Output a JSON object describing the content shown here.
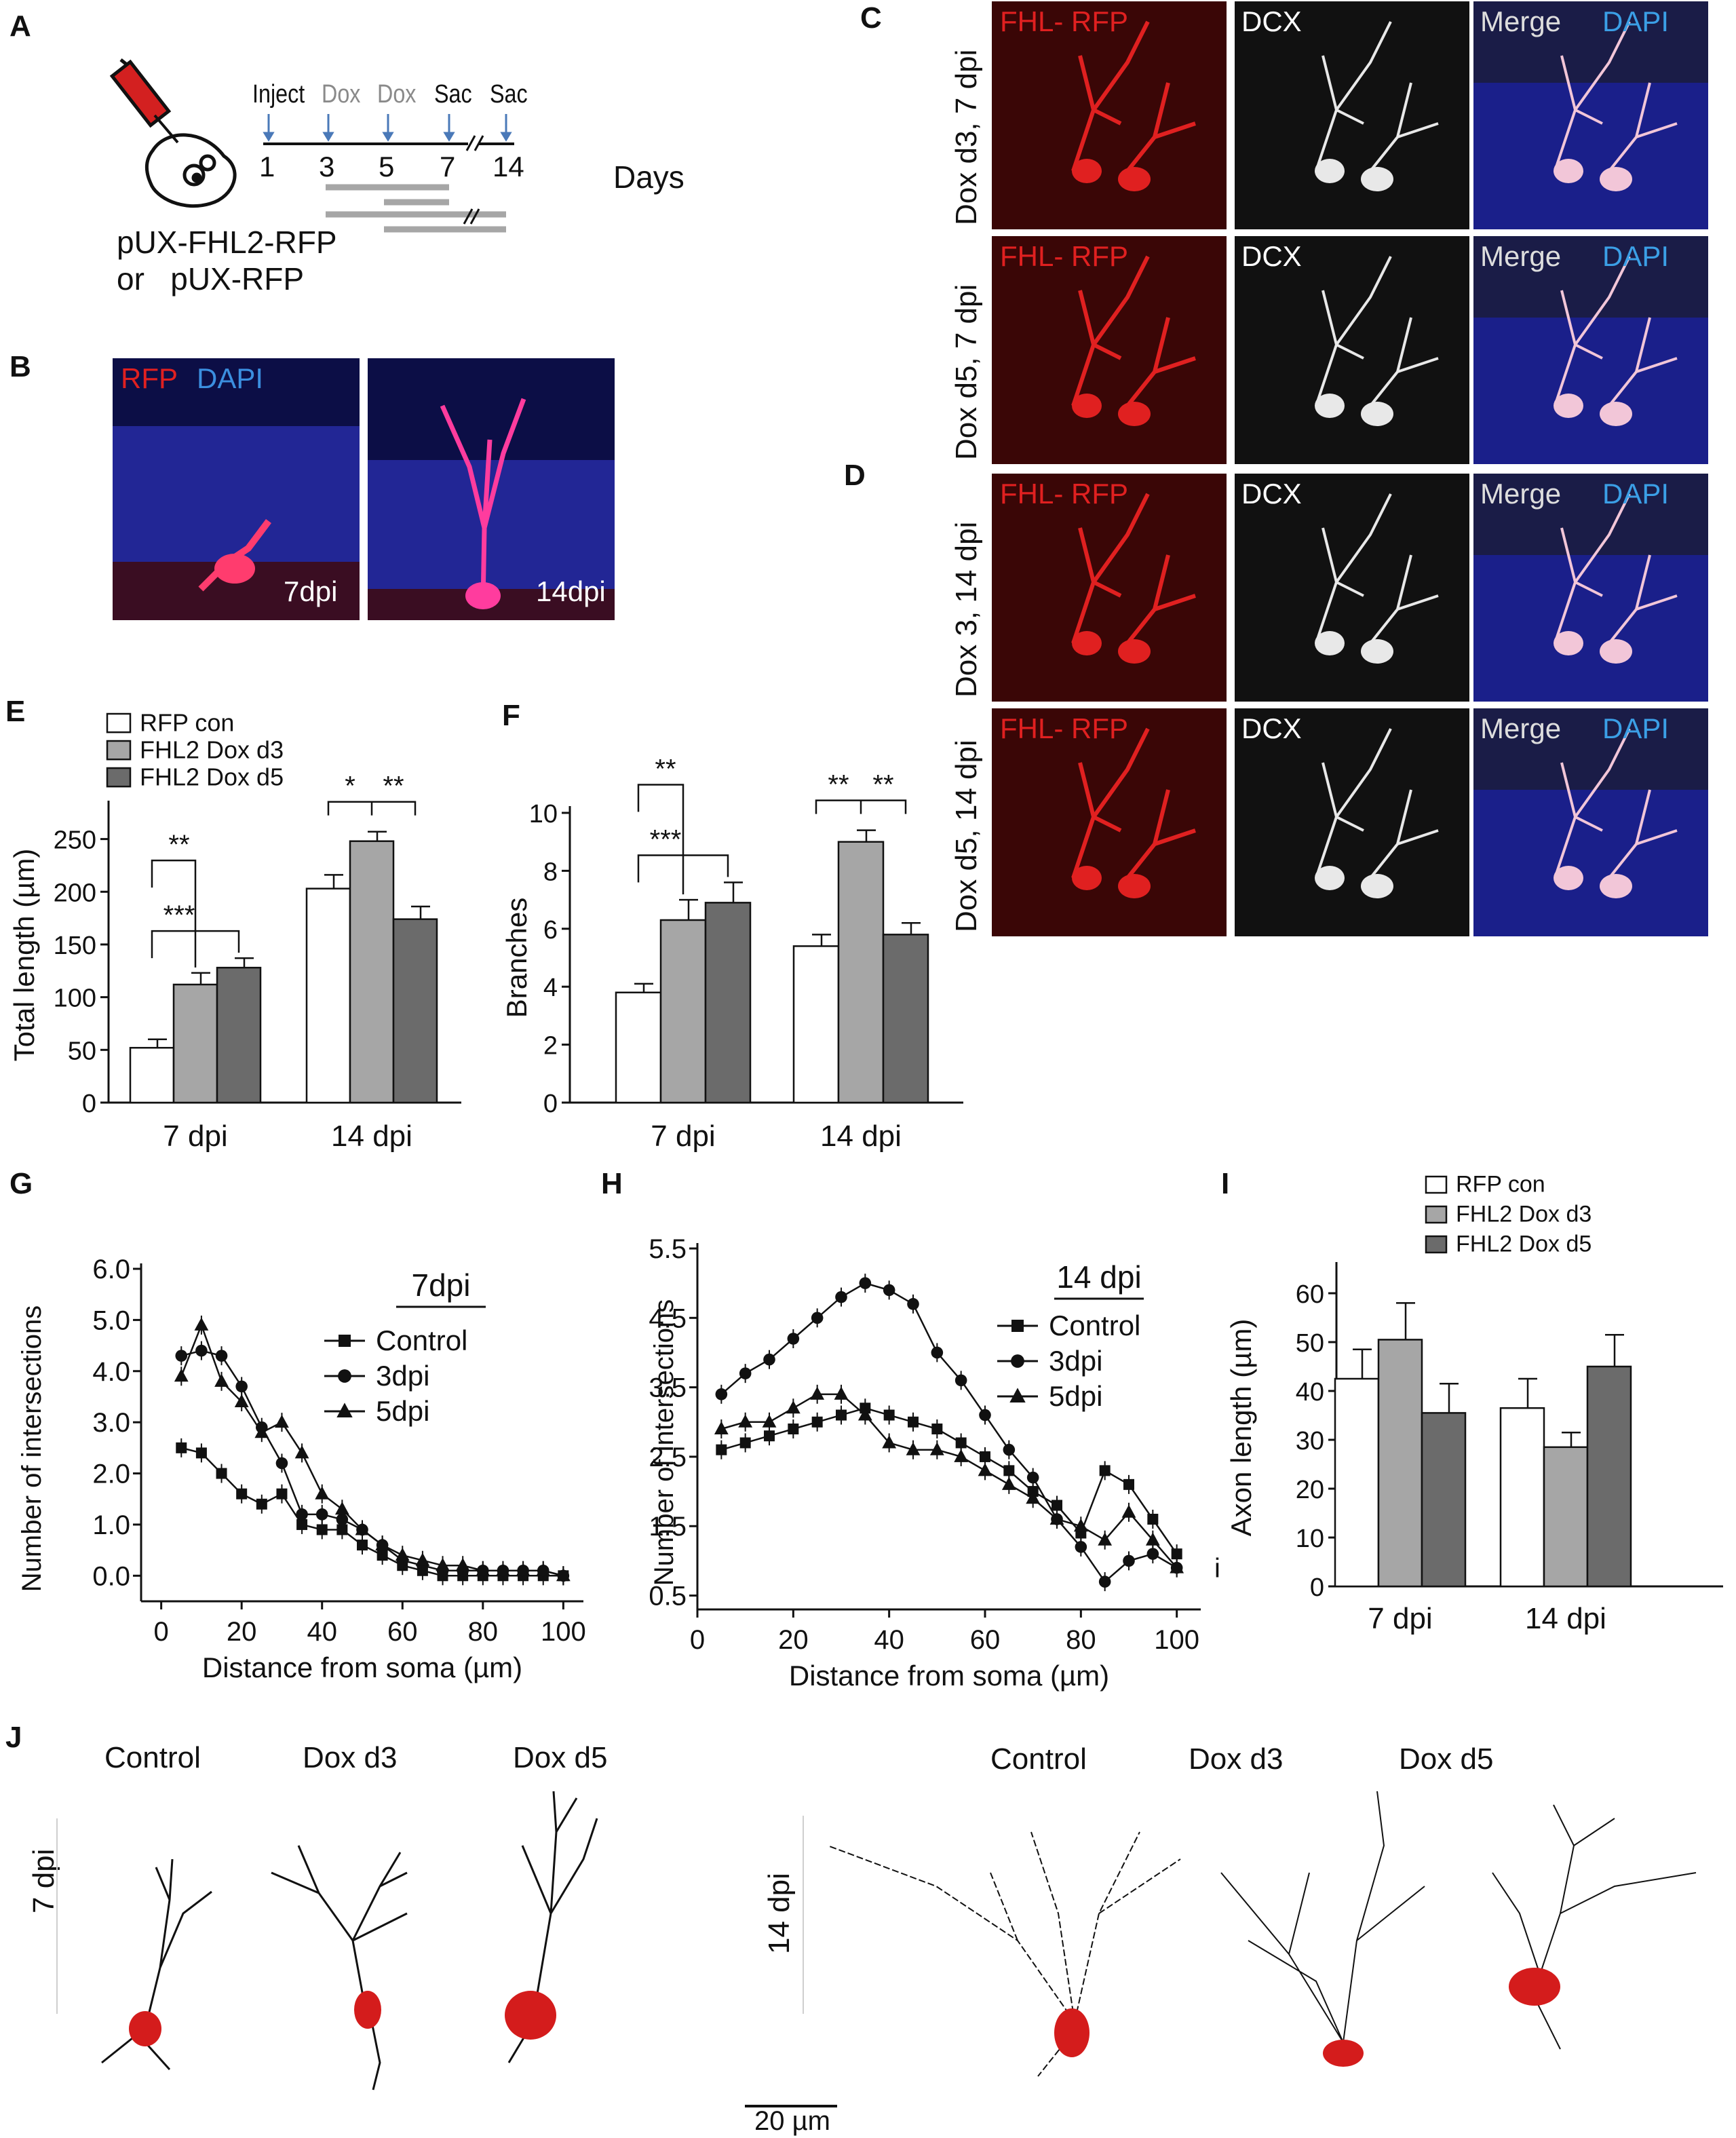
{
  "panels": {
    "A": "A",
    "B": "B",
    "C": "C",
    "D": "D",
    "E": "E",
    "F": "F",
    "G": "G",
    "H": "H",
    "I": "I",
    "J": "J"
  },
  "timeline": {
    "events": [
      "Inject",
      "Dox",
      "Dox",
      "Sac",
      "Sac"
    ],
    "days": [
      "1",
      "3",
      "5",
      "7",
      "14"
    ],
    "days_label": "Days",
    "constructs": [
      "pUX-FHL2-RFP",
      "or   pUX-RFP"
    ]
  },
  "panel_b": {
    "label_rfp": "RFP",
    "label_dapi": "DAPI",
    "timepoints": [
      "7dpi",
      "14dpi"
    ]
  },
  "panel_cd": {
    "column_labels": {
      "fhl_rfp": "FHL- RFP",
      "dcx": "DCX",
      "merge": "Merge",
      "dapi": "DAPI"
    },
    "row_labels": [
      "Dox d3, 7 dpi",
      "Dox d5, 7 dpi",
      "Dox 3, 14 dpi",
      "Dox d5, 14 dpi"
    ]
  },
  "colors": {
    "rfp_con": "#ffffff",
    "dox_d3": "#a6a6a6",
    "dox_d5": "#6b6b6b",
    "rfp_red": "#e02020",
    "dapi_blue": "#2b2bd4"
  },
  "chart_data": [
    {
      "id": "E",
      "type": "bar",
      "categories": [
        "7 dpi",
        "14 dpi"
      ],
      "series": [
        {
          "name": "RFP con",
          "values": [
            52,
            203
          ],
          "errors": [
            8,
            13
          ]
        },
        {
          "name": "FHL2 Dox d3",
          "values": [
            112,
            248
          ],
          "errors": [
            11,
            9
          ]
        },
        {
          "name": "FHL2 Dox d5",
          "values": [
            128,
            174
          ],
          "errors": [
            9,
            12
          ]
        }
      ],
      "ylabel": "Total length (µm)",
      "ylim": [
        0,
        280
      ],
      "yticks": [
        0,
        50,
        100,
        150,
        200,
        250
      ],
      "significance": [
        {
          "group": "7 dpi",
          "pair": [
            "RFP con",
            "FHL2 Dox d3"
          ],
          "mark": "**"
        },
        {
          "group": "7 dpi",
          "pair": [
            "RFP con",
            "FHL2 Dox d5"
          ],
          "mark": "***"
        },
        {
          "group": "14 dpi",
          "pair": [
            "RFP con",
            "FHL2 Dox d3"
          ],
          "mark": "*"
        },
        {
          "group": "14 dpi",
          "pair": [
            "FHL2 Dox d3",
            "FHL2 Dox d5"
          ],
          "mark": "**"
        }
      ],
      "legend": "top-left"
    },
    {
      "id": "F",
      "type": "bar",
      "categories": [
        "7 dpi",
        "14 dpi"
      ],
      "series": [
        {
          "name": "RFP con",
          "values": [
            3.8,
            5.4
          ],
          "errors": [
            0.3,
            0.4
          ]
        },
        {
          "name": "FHL2 Dox d3",
          "values": [
            6.3,
            9.0
          ],
          "errors": [
            0.7,
            0.4
          ]
        },
        {
          "name": "FHL2 Dox d5",
          "values": [
            6.9,
            5.8
          ],
          "errors": [
            0.7,
            0.4
          ]
        }
      ],
      "ylabel": "Branches",
      "ylim": [
        0,
        10
      ],
      "yticks": [
        0,
        2,
        4,
        6,
        8,
        10
      ],
      "significance": [
        {
          "group": "7 dpi",
          "pair": [
            "RFP con",
            "FHL2 Dox d3"
          ],
          "mark": "**"
        },
        {
          "group": "7 dpi",
          "pair": [
            "RFP con",
            "FHL2 Dox d5"
          ],
          "mark": "***"
        },
        {
          "group": "14 dpi",
          "pair": [
            "RFP con",
            "FHL2 Dox d3"
          ],
          "mark": "**"
        },
        {
          "group": "14 dpi",
          "pair": [
            "FHL2 Dox d3",
            "FHL2 Dox d5"
          ],
          "mark": "**"
        }
      ]
    },
    {
      "id": "G",
      "type": "line",
      "title": "7dpi",
      "xlabel": "Distance from soma (µm)",
      "ylabel": "Number of intersections",
      "xlim": [
        -5,
        105
      ],
      "ylim": [
        -0.5,
        6.0
      ],
      "xticks": [
        0,
        20,
        40,
        60,
        80,
        100
      ],
      "yticks": [
        0.0,
        1.0,
        2.0,
        3.0,
        4.0,
        5.0,
        6.0
      ],
      "ytick_labels": [
        "0.0",
        "1.0",
        "2.0",
        "3.0",
        "4.0",
        "5.0",
        "6.0"
      ],
      "x": [
        5,
        10,
        15,
        20,
        25,
        30,
        35,
        40,
        45,
        50,
        55,
        60,
        65,
        70,
        75,
        80,
        85,
        90,
        95,
        100
      ],
      "series": [
        {
          "name": "Control",
          "marker": "square",
          "values": [
            2.5,
            2.4,
            2.0,
            1.6,
            1.4,
            1.6,
            1.0,
            0.9,
            0.9,
            0.6,
            0.4,
            0.2,
            0.1,
            0.0,
            0.0,
            0.0,
            0.0,
            0.0,
            0.0,
            0.0
          ]
        },
        {
          "name": "3dpi",
          "marker": "circle",
          "values": [
            4.3,
            4.4,
            4.3,
            3.7,
            2.9,
            2.2,
            1.2,
            1.2,
            1.1,
            0.9,
            0.6,
            0.3,
            0.2,
            0.1,
            0.1,
            0.1,
            0.1,
            0.1,
            0.1,
            0.0
          ]
        },
        {
          "name": "5dpi",
          "marker": "triangle",
          "values": [
            3.9,
            4.9,
            3.8,
            3.4,
            2.8,
            3.0,
            2.4,
            1.6,
            1.3,
            0.9,
            0.6,
            0.4,
            0.3,
            0.2,
            0.2,
            0.1,
            0.1,
            0.1,
            0.1,
            0.0
          ]
        }
      ],
      "legend": "top-right"
    },
    {
      "id": "H",
      "type": "line",
      "title": "14 dpi",
      "xlabel": "Distance from soma (µm)",
      "ylabel": "Number of intersections",
      "xlim": [
        0,
        105
      ],
      "ylim": [
        0.3,
        5.5
      ],
      "xticks": [
        0,
        20,
        40,
        60,
        80,
        100
      ],
      "yticks": [
        0.5,
        1.5,
        2.5,
        3.5,
        4.5,
        5.5
      ],
      "x": [
        5,
        10,
        15,
        20,
        25,
        30,
        35,
        40,
        45,
        50,
        55,
        60,
        65,
        70,
        75,
        80,
        85,
        90,
        95,
        100
      ],
      "series": [
        {
          "name": "Control",
          "marker": "square",
          "values": [
            2.6,
            2.7,
            2.8,
            2.9,
            3.0,
            3.1,
            3.2,
            3.1,
            3.0,
            2.9,
            2.7,
            2.5,
            2.3,
            2.0,
            1.8,
            1.4,
            2.3,
            2.1,
            1.6,
            1.1
          ]
        },
        {
          "name": "3dpi",
          "marker": "circle",
          "values": [
            3.4,
            3.7,
            3.9,
            4.2,
            4.5,
            4.8,
            5.0,
            4.9,
            4.7,
            4.0,
            3.6,
            3.1,
            2.6,
            2.2,
            1.6,
            1.2,
            0.7,
            1.0,
            1.1,
            0.9
          ]
        },
        {
          "name": "5dpi",
          "marker": "triangle",
          "values": [
            2.9,
            3.0,
            3.0,
            3.2,
            3.4,
            3.4,
            3.1,
            2.7,
            2.6,
            2.6,
            2.5,
            2.3,
            2.1,
            1.9,
            1.6,
            1.5,
            1.3,
            1.7,
            1.3,
            0.9
          ]
        }
      ],
      "annotation": "i",
      "legend": "top-right"
    },
    {
      "id": "I",
      "type": "bar",
      "categories": [
        "7 dpi",
        "14 dpi"
      ],
      "series": [
        {
          "name": "RFP con",
          "values": [
            42.5,
            36.5
          ],
          "errors": [
            6,
            6
          ]
        },
        {
          "name": "FHL2 Dox d3",
          "values": [
            50.5,
            28.5
          ],
          "errors": [
            7.5,
            3
          ]
        },
        {
          "name": "FHL2 Dox d5",
          "values": [
            35.5,
            45.0
          ],
          "errors": [
            6,
            6.5
          ]
        }
      ],
      "ylabel": "Axon length (µm)",
      "ylim": [
        0,
        65
      ],
      "yticks": [
        0,
        10,
        20,
        30,
        40,
        50,
        60
      ],
      "legend": "top-right"
    }
  ],
  "panel_j": {
    "labels_7dpi": [
      "Control",
      "Dox d3",
      "Dox d5"
    ],
    "labels_14dpi": [
      "Control",
      "Dox d3",
      "Dox d5"
    ],
    "row_7dpi": "7 dpi",
    "row_14dpi": "14 dpi",
    "scale_bar": "20 µm"
  }
}
